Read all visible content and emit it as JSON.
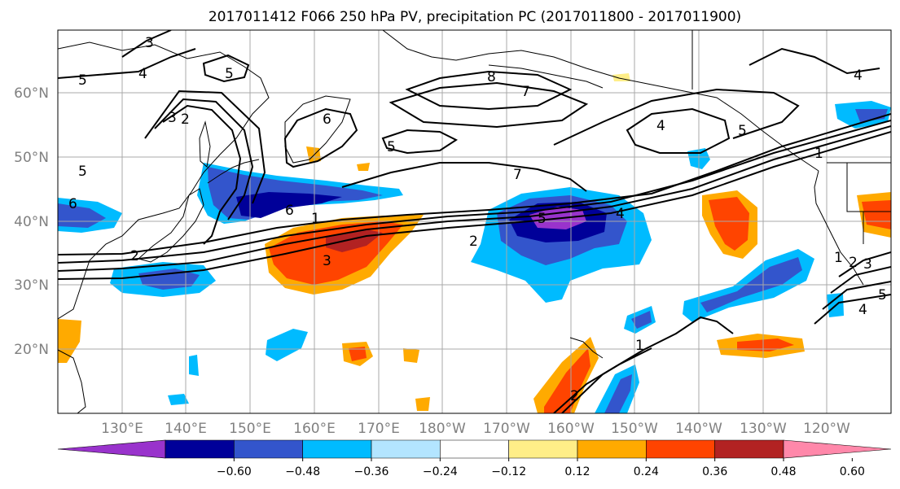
{
  "title": "2017011412 F066 250 hPa PV, precipitation PC (2017011800 - 2017011900)",
  "lat_labels": [
    "60°N",
    "50°N",
    "40°N",
    "30°N",
    "20°N"
  ],
  "lon_labels": [
    "130°E",
    "140°E",
    "150°E",
    "160°E",
    "170°E",
    "180°W",
    "170°W",
    "160°W",
    "150°W",
    "140°W",
    "130°W",
    "120°W"
  ],
  "colorbar": {
    "colors": [
      "#9933cc",
      "#000099",
      "#3355cc",
      "#00bbff",
      "#b3e5ff",
      "#ffffff",
      "#ffee88",
      "#ffaa00",
      "#ff4400",
      "#b22222",
      "#ff88aa"
    ],
    "tick_labels": [
      "−0.60",
      "−0.48",
      "−0.36",
      "−0.24",
      "−0.12",
      "0.12",
      "0.24",
      "0.36",
      "0.48",
      "0.60"
    ]
  },
  "contour_labels": [
    "3",
    "4",
    "5",
    "5",
    "6",
    "8",
    "7",
    "4",
    "2",
    "3",
    "5",
    "6",
    "5",
    "7",
    "1",
    "2",
    "6",
    "1",
    "2",
    "5",
    "4",
    "3",
    "1",
    "1",
    "2",
    "2",
    "3",
    "5",
    "4",
    "4",
    "5"
  ]
}
